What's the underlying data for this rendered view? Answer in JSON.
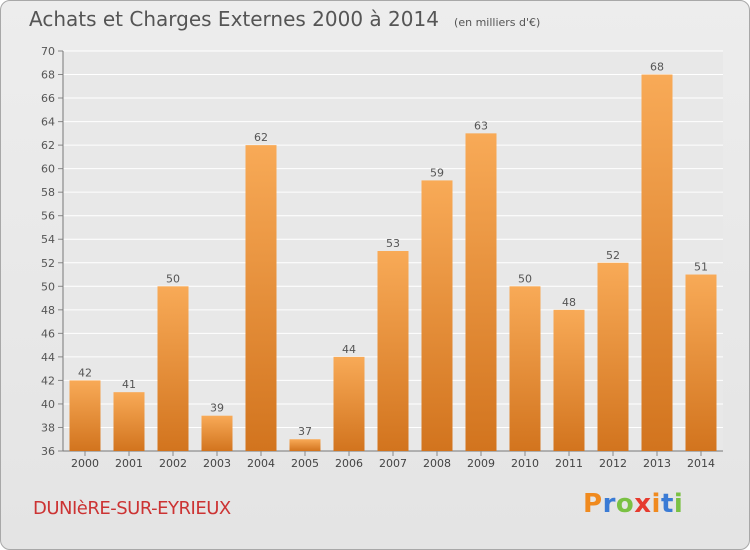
{
  "chart_data": {
    "type": "bar",
    "title": "Achats et Charges Externes 2000 à 2014",
    "subtitle": "(en milliers d'€)",
    "categories": [
      "2000",
      "2001",
      "2002",
      "2003",
      "2004",
      "2005",
      "2006",
      "2007",
      "2008",
      "2009",
      "2010",
      "2011",
      "2012",
      "2013",
      "2014"
    ],
    "values": [
      42,
      41,
      50,
      39,
      62,
      37,
      44,
      53,
      59,
      63,
      50,
      48,
      52,
      68,
      51
    ],
    "ylim": [
      36,
      70
    ],
    "yticks": [
      36,
      38,
      40,
      42,
      44,
      46,
      48,
      50,
      52,
      54,
      56,
      58,
      60,
      62,
      64,
      66,
      68,
      70
    ],
    "grid": true,
    "bar_color": "#f0a04b"
  },
  "footer": {
    "town": "DUNIèRE-SUR-EYRIEUX",
    "logo": {
      "text": "Proxiti",
      "colors": [
        "#f08a1e",
        "#3a7bd5",
        "#7ac143",
        "#e63a2e",
        "#f08a1e",
        "#3a7bd5",
        "#7ac143"
      ]
    }
  }
}
